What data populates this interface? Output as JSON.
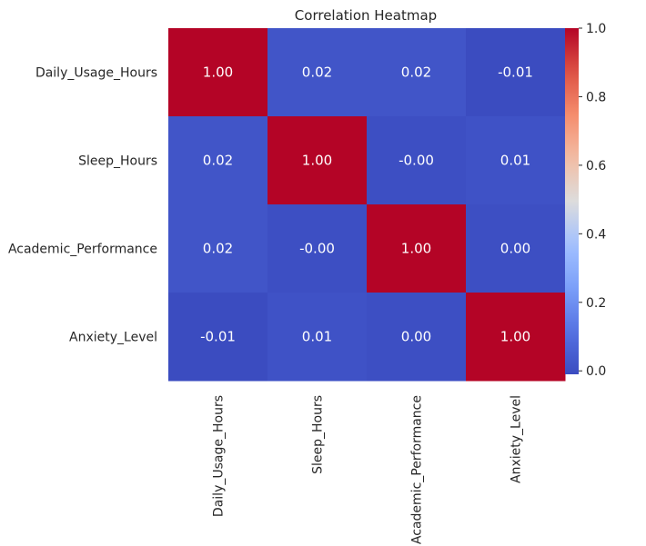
{
  "chart_data": {
    "type": "heatmap",
    "title": "Correlation Heatmap",
    "x_labels": [
      "Daily_Usage_Hours",
      "Sleep_Hours",
      "Academic_Performance",
      "Anxiety_Level"
    ],
    "y_labels": [
      "Daily_Usage_Hours",
      "Sleep_Hours",
      "Academic_Performance",
      "Anxiety_Level"
    ],
    "values": [
      [
        1.0,
        0.02,
        0.02,
        -0.01
      ],
      [
        0.02,
        1.0,
        -0.0,
        0.01
      ],
      [
        0.02,
        -0.0,
        1.0,
        0.0
      ],
      [
        -0.01,
        0.01,
        0.0,
        1.0
      ]
    ],
    "cell_labels": [
      [
        "1.00",
        "0.02",
        "0.02",
        "-0.01"
      ],
      [
        "0.02",
        "1.00",
        "-0.00",
        "0.01"
      ],
      [
        "0.02",
        "-0.00",
        "1.00",
        "0.00"
      ],
      [
        "-0.01",
        "0.01",
        "0.00",
        "1.00"
      ]
    ],
    "colormap": "coolwarm",
    "vmin": -0.01,
    "vmax": 1.0,
    "colorbar_ticks": [
      "0.0",
      "0.2",
      "0.4",
      "0.6",
      "0.8",
      "1.0"
    ],
    "colorbar_tick_values": [
      0.0,
      0.2,
      0.4,
      0.6,
      0.8,
      1.0
    ],
    "colors": {
      "low": "#3b4cc0",
      "mid": "#dddcdc",
      "high": "#b40426",
      "text_on_dark": "#ffffff"
    }
  }
}
